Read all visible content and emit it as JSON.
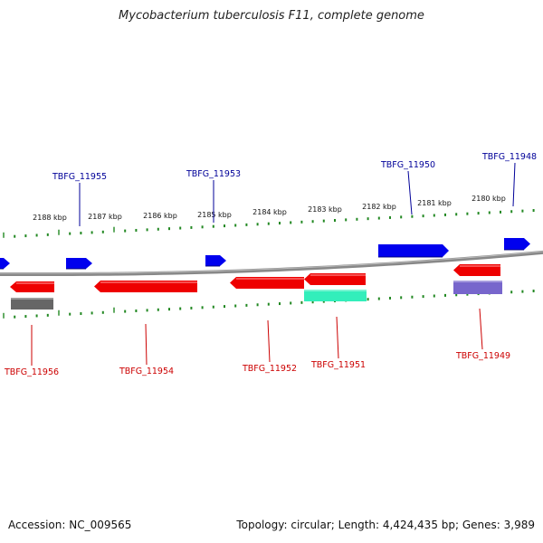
{
  "title": "Mycobacterium tuberculosis F11, complete genome",
  "footer": {
    "accession_label": "Accession: NC_009565",
    "summary": "Topology: circular; Length: 4,424,435 bp; Genes: 3,989"
  },
  "colors": {
    "forward_gene": "#0000ee",
    "reverse_gene": "#ee0000",
    "backbone": "#888888",
    "tick": "#228822",
    "forward_label": "#000099",
    "reverse_label": "#cc0000",
    "grey_feature": "#666666",
    "green_feature": "#33eebb",
    "purple_feature": "#7766cc"
  },
  "scale_labels": [
    "2188 kbp",
    "2187 kbp",
    "2186 kbp",
    "2185 kbp",
    "2184 kbp",
    "2183 kbp",
    "2182 kbp",
    "2181 kbp",
    "2180 kbp"
  ],
  "forward_gene_labels": [
    "TBFG_11955",
    "TBFG_11953",
    "TBFG_11950",
    "TBFG_11948"
  ],
  "reverse_gene_labels": [
    "TBFG_11956",
    "TBFG_11954",
    "TBFG_11952",
    "TBFG_11951",
    "TBFG_11949"
  ]
}
